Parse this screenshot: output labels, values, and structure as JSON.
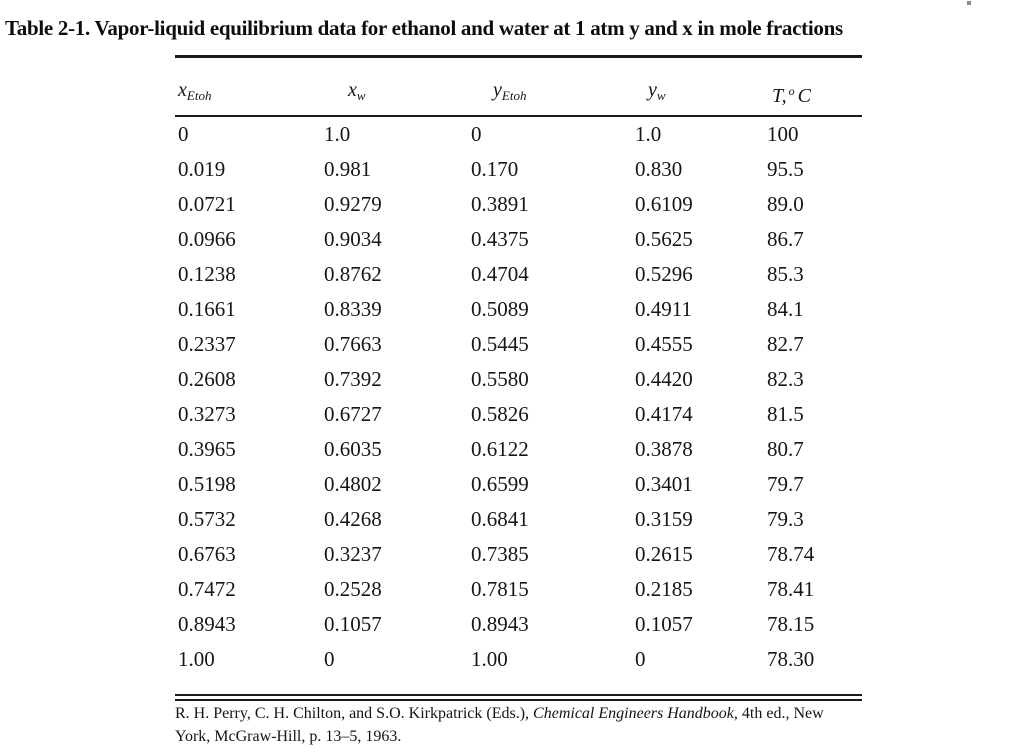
{
  "page": {
    "title": "Table 2-1. Vapor-liquid equilibrium data for ethanol and water at 1 atm y and x in mole fractions"
  },
  "colors": {
    "background": "#ffffff",
    "text": "#161616",
    "rule": "#1c1c1c"
  },
  "table": {
    "columns": [
      {
        "base": "x",
        "sub": "Etoh"
      },
      {
        "base": "x",
        "sub": "w"
      },
      {
        "base": "y",
        "sub": "Etoh"
      },
      {
        "base": "y",
        "sub": "w"
      },
      {
        "base": "T,",
        "sup": "o",
        "tail": "C"
      }
    ],
    "rows": [
      [
        "0",
        "1.0",
        "0",
        "1.0",
        "100"
      ],
      [
        "0.019",
        "0.981",
        "0.170",
        "0.830",
        "95.5"
      ],
      [
        "0.0721",
        "0.9279",
        "0.3891",
        "0.6109",
        "89.0"
      ],
      [
        "0.0966",
        "0.9034",
        "0.4375",
        "0.5625",
        "86.7"
      ],
      [
        "0.1238",
        "0.8762",
        "0.4704",
        "0.5296",
        "85.3"
      ],
      [
        "0.1661",
        "0.8339",
        "0.5089",
        "0.4911",
        "84.1"
      ],
      [
        "0.2337",
        "0.7663",
        "0.5445",
        "0.4555",
        "82.7"
      ],
      [
        "0.2608",
        "0.7392",
        "0.5580",
        "0.4420",
        "82.3"
      ],
      [
        "0.3273",
        "0.6727",
        "0.5826",
        "0.4174",
        "81.5"
      ],
      [
        "0.3965",
        "0.6035",
        "0.6122",
        "0.3878",
        "80.7"
      ],
      [
        "0.5198",
        "0.4802",
        "0.6599",
        "0.3401",
        "79.7"
      ],
      [
        "0.5732",
        "0.4268",
        "0.6841",
        "0.3159",
        "79.3"
      ],
      [
        "0.6763",
        "0.3237",
        "0.7385",
        "0.2615",
        "78.74"
      ],
      [
        "0.7472",
        "0.2528",
        "0.7815",
        "0.2185",
        "78.41"
      ],
      [
        "0.8943",
        "0.1057",
        "0.8943",
        "0.1057",
        "78.15"
      ],
      [
        "1.00",
        "0",
        "1.00",
        "0",
        "78.30"
      ]
    ]
  },
  "footer": {
    "citation_prefix": "R. H. Perry, C. H. Chilton, and S.O. Kirkpatrick (Eds.), ",
    "citation_italic": "Chemical Engineers Handbook",
    "citation_suffix": ", 4th ed., New York, McGraw-Hill, p. 13–5, 1963."
  }
}
